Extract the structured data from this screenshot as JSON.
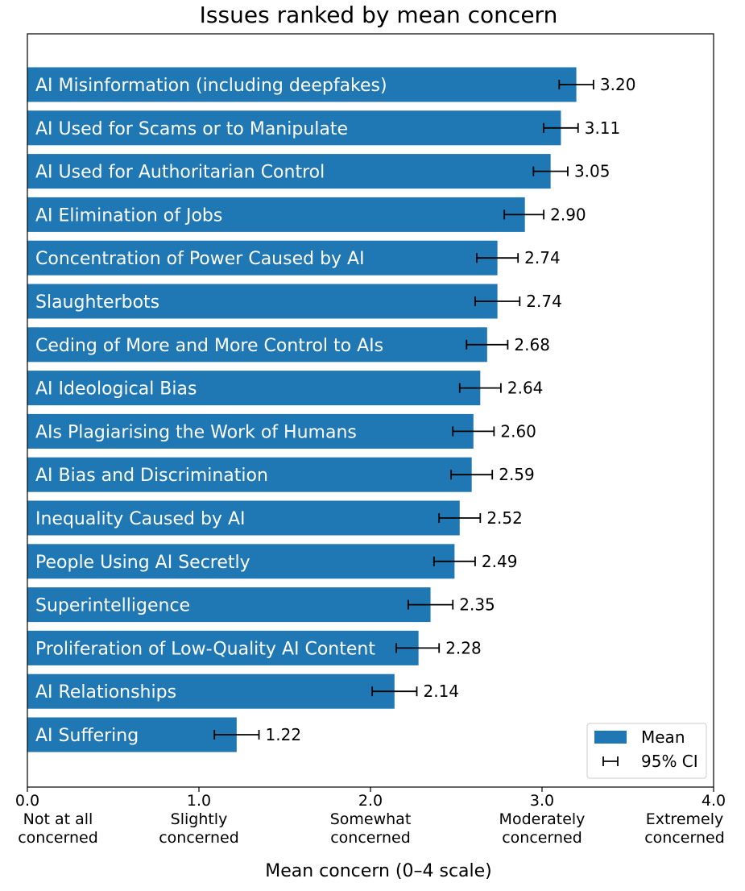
{
  "chart_data": {
    "type": "bar",
    "orientation": "horizontal",
    "title": "Issues ranked by mean concern",
    "xlabel": "Mean concern (0–4 scale)",
    "ylabel": "",
    "xlim": [
      0,
      4
    ],
    "categories": [
      "AI Misinformation (including deepfakes)",
      "AI Used for Scams or to Manipulate",
      "AI Used for Authoritarian Control",
      "AI Elimination of Jobs",
      "Concentration of Power Caused by AI",
      "Slaughterbots",
      "Ceding of More and More Control to AIs",
      "AI Ideological Bias",
      "AIs Plagiarising the Work of Humans",
      "AI Bias and Discrimination",
      "Inequality Caused by AI",
      "People Using AI Secretly",
      "Superintelligence",
      "Proliferation of Low-Quality AI Content",
      "AI Relationships",
      "AI Suffering"
    ],
    "values": [
      3.2,
      3.11,
      3.05,
      2.9,
      2.74,
      2.74,
      2.68,
      2.64,
      2.6,
      2.59,
      2.52,
      2.49,
      2.35,
      2.28,
      2.14,
      1.22
    ],
    "value_labels": [
      "3.20",
      "3.11",
      "3.05",
      "2.90",
      "2.74",
      "2.74",
      "2.68",
      "2.64",
      "2.60",
      "2.59",
      "2.52",
      "2.49",
      "2.35",
      "2.28",
      "2.14",
      "1.22"
    ],
    "ci_low": [
      3.1,
      3.01,
      2.95,
      2.78,
      2.62,
      2.61,
      2.56,
      2.52,
      2.48,
      2.47,
      2.4,
      2.37,
      2.22,
      2.15,
      2.01,
      1.09
    ],
    "ci_high": [
      3.3,
      3.21,
      3.15,
      3.01,
      2.86,
      2.87,
      2.8,
      2.76,
      2.72,
      2.71,
      2.64,
      2.61,
      2.48,
      2.4,
      2.27,
      1.35
    ],
    "xticks": [
      0,
      1,
      2,
      3,
      4
    ],
    "xtick_labels": [
      "0.0",
      "1.0",
      "2.0",
      "3.0",
      "4.0"
    ],
    "xtick_descriptions": [
      [
        "Not at all",
        "concerned"
      ],
      [
        "Slightly",
        "concerned"
      ],
      [
        "Somewhat",
        "concerned"
      ],
      [
        "Moderately",
        "concerned"
      ],
      [
        "Extremely",
        "concerned"
      ]
    ],
    "legend": {
      "position": "bottom-right",
      "entries": [
        "Mean",
        "95% CI"
      ]
    },
    "colors": {
      "bar": "#1f77b4",
      "errorbar": "#000000"
    },
    "grid": false
  }
}
